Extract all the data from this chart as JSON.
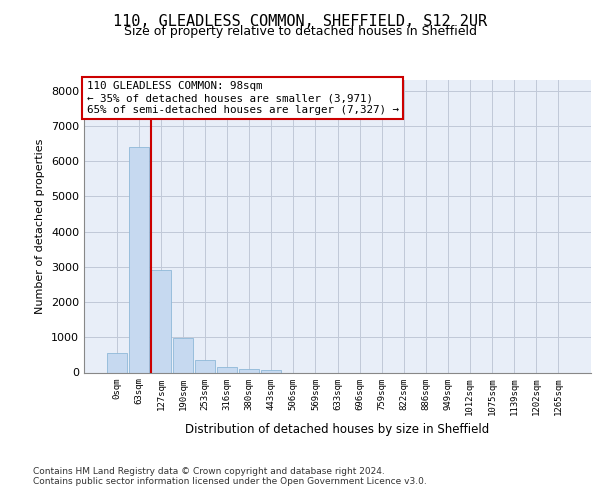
{
  "title_line1": "110, GLEADLESS COMMON, SHEFFIELD, S12 2UR",
  "title_line2": "Size of property relative to detached houses in Sheffield",
  "xlabel": "Distribution of detached houses by size in Sheffield",
  "ylabel": "Number of detached properties",
  "bar_labels": [
    "0sqm",
    "63sqm",
    "127sqm",
    "190sqm",
    "253sqm",
    "316sqm",
    "380sqm",
    "443sqm",
    "506sqm",
    "569sqm",
    "633sqm",
    "696sqm",
    "759sqm",
    "822sqm",
    "886sqm",
    "949sqm",
    "1012sqm",
    "1075sqm",
    "1139sqm",
    "1202sqm",
    "1265sqm"
  ],
  "bar_values": [
    560,
    6400,
    2920,
    980,
    360,
    165,
    95,
    80,
    0,
    0,
    0,
    0,
    0,
    0,
    0,
    0,
    0,
    0,
    0,
    0,
    0
  ],
  "bar_color": "#c6d9f0",
  "bar_edge_color": "#8fb8d8",
  "grid_color": "#c0c8d8",
  "bg_color": "#e8eef8",
  "vline_color": "#cc0000",
  "vline_x": 1.56,
  "annotation_text": "110 GLEADLESS COMMON: 98sqm\n← 35% of detached houses are smaller (3,971)\n65% of semi-detached houses are larger (7,327) →",
  "annotation_box_facecolor": "#ffffff",
  "annotation_border_color": "#cc0000",
  "ylim": [
    0,
    8300
  ],
  "yticks": [
    0,
    1000,
    2000,
    3000,
    4000,
    5000,
    6000,
    7000,
    8000
  ],
  "footnote_line1": "Contains HM Land Registry data © Crown copyright and database right 2024.",
  "footnote_line2": "Contains public sector information licensed under the Open Government Licence v3.0."
}
